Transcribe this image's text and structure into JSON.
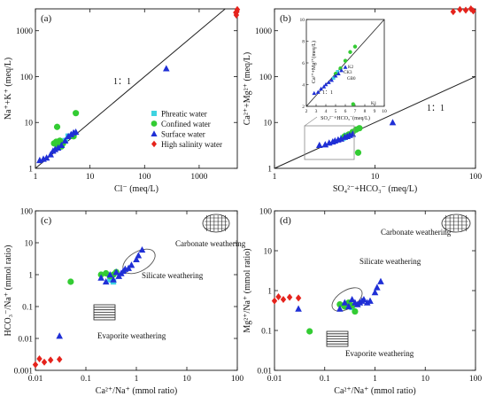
{
  "colors": {
    "phreatic": "#3fd3e0",
    "confined": "#33cc33",
    "surface": "#1f2fd6",
    "high_salinity": "#e5231c",
    "line": "#222222"
  },
  "chart_data": [
    {
      "panel": "(a)",
      "type": "scatter",
      "xscale": "log",
      "yscale": "log",
      "xlim": [
        1,
        5000
      ],
      "ylim": [
        1,
        3000
      ],
      "xticks": [
        "1",
        "10",
        "100",
        "1000"
      ],
      "yticks": [
        "1",
        "10",
        "100",
        "1000"
      ],
      "xlabel": "Cl⁻ (meq/L)",
      "ylabel": "Na⁺+K⁺ (meq/L)",
      "annotations": [
        "1：1"
      ],
      "legend": {
        "placement": "bottom-right",
        "entries": [
          "Phreatic water",
          "Confined water",
          "Surface water",
          "High salinity water"
        ]
      },
      "series": [
        {
          "name": "Phreatic water",
          "marker": "square",
          "x": [
            2.5,
            3.5,
            4.0
          ],
          "y": [
            3.0,
            4.0,
            5.0
          ]
        },
        {
          "name": "Confined water",
          "marker": "circle",
          "x": [
            2.2,
            2.5,
            2.8,
            3.0,
            3.2,
            2.4,
            5.5,
            5.0,
            2.6
          ],
          "y": [
            3.5,
            8.0,
            4.0,
            3.0,
            3.5,
            3.8,
            16,
            5.0,
            3.2
          ]
        },
        {
          "name": "Surface water",
          "marker": "triangle",
          "x": [
            1.2,
            1.4,
            1.6,
            1.9,
            2.1,
            2.3,
            2.6,
            3.0,
            3.5,
            4.0,
            4.5,
            5.0,
            5.5,
            250
          ],
          "y": [
            1.5,
            1.6,
            1.7,
            2.0,
            2.4,
            2.6,
            2.8,
            3.2,
            4.0,
            5.0,
            5.5,
            6.0,
            6.2,
            150
          ]
        },
        {
          "name": "High salinity water",
          "marker": "diamond",
          "x": [
            4800,
            4900,
            4700,
            5000
          ],
          "y": [
            2200,
            2600,
            2500,
            2900
          ]
        }
      ],
      "reference_line": {
        "slope": 1,
        "label": "1：1"
      }
    },
    {
      "panel": "(b)",
      "type": "scatter",
      "xscale": "log",
      "yscale": "log",
      "xlim": [
        1,
        100
      ],
      "ylim": [
        1,
        3000
      ],
      "xticks": [
        "1",
        "10",
        "100"
      ],
      "yticks": [
        "1",
        "10",
        "100",
        "1000"
      ],
      "xlabel": "SO₄²⁻+HCO₃⁻ (meq/L)",
      "ylabel": "Ca²⁺+Mg²⁺ (meq/L)",
      "annotations": [
        "1：1"
      ],
      "inset": {
        "xlabel": "SO₄²⁻+HCO₃⁻(meq/L)",
        "ylabel": "Ca²⁺+Mg²⁺(meq/L)",
        "xlim": [
          2,
          10
        ],
        "ylim": [
          2,
          10
        ],
        "xticks": [
          "2",
          "3",
          "4",
          "5",
          "6",
          "7",
          "8",
          "9",
          "10"
        ],
        "yticks": [
          "2",
          "4",
          "6",
          "8",
          "10"
        ],
        "annotations": [
          "1：1",
          "K2",
          "CK3",
          "GB0",
          "K1"
        ]
      },
      "series": [
        {
          "name": "Phreatic water",
          "marker": "square",
          "x": [
            4.8,
            5.2
          ],
          "y": [
            4.6,
            5.2
          ]
        },
        {
          "name": "Confined water",
          "marker": "circle",
          "x": [
            5.0,
            5.5,
            6.0,
            6.5,
            7.0,
            6.8
          ],
          "y": [
            5.0,
            5.5,
            6.2,
            7.0,
            7.5,
            2.2
          ]
        },
        {
          "name": "Surface water",
          "marker": "triangle",
          "x": [
            2.8,
            3.2,
            3.5,
            3.8,
            4.0,
            4.3,
            4.6,
            5.0,
            5.3,
            5.6,
            6.0,
            15
          ],
          "y": [
            3.2,
            3.3,
            3.6,
            3.8,
            4.0,
            4.2,
            4.4,
            4.8,
            5.0,
            5.3,
            5.6,
            10
          ]
        },
        {
          "name": "High salinity water",
          "marker": "diamond",
          "x": [
            60,
            70,
            80,
            90,
            95
          ],
          "y": [
            2600,
            2900,
            2800,
            3000,
            2700
          ]
        }
      ],
      "reference_line": {
        "slope": 1,
        "label": "1：1"
      }
    },
    {
      "panel": "(c)",
      "type": "scatter",
      "xscale": "log",
      "yscale": "log",
      "xlim": [
        0.01,
        100
      ],
      "ylim": [
        0.001,
        100
      ],
      "xticks": [
        "0.01",
        "0.1",
        "1",
        "10",
        "100"
      ],
      "yticks": [
        "0.001",
        "0.01",
        "0.1",
        "1",
        "10",
        "100"
      ],
      "xlabel": "Ca²⁺/Na⁺ (mmol ratio)",
      "ylabel": "HCO₃⁻/Na⁺ (mmol ratio)",
      "annotations": [
        "Carbonate weathering",
        "Silicate weathering",
        "Evaporite weathering"
      ],
      "series": [
        {
          "name": "Phreatic water",
          "marker": "square",
          "x": [
            0.3,
            0.35
          ],
          "y": [
            0.7,
            0.6
          ]
        },
        {
          "name": "Confined water",
          "marker": "circle",
          "x": [
            0.05,
            0.2,
            0.25,
            0.3,
            0.35,
            0.4
          ],
          "y": [
            0.6,
            1.0,
            1.1,
            0.9,
            1.0,
            1.2
          ]
        },
        {
          "name": "Surface water",
          "marker": "triangle",
          "x": [
            0.03,
            0.2,
            0.25,
            0.3,
            0.35,
            0.4,
            0.45,
            0.5,
            0.55,
            0.6,
            0.7,
            0.8,
            1.0,
            1.1,
            1.3
          ],
          "y": [
            0.012,
            0.8,
            0.6,
            1.0,
            0.7,
            1.2,
            0.9,
            1.1,
            1.3,
            1.5,
            1.6,
            2.0,
            3.0,
            4.0,
            6.0
          ]
        },
        {
          "name": "High salinity water",
          "marker": "diamond",
          "x": [
            0.01,
            0.012,
            0.015,
            0.02,
            0.03
          ],
          "y": [
            0.0015,
            0.0023,
            0.0018,
            0.0021,
            0.0022
          ]
        }
      ]
    },
    {
      "panel": "(d)",
      "type": "scatter",
      "xscale": "log",
      "yscale": "log",
      "xlim": [
        0.01,
        100
      ],
      "ylim": [
        0.01,
        100
      ],
      "xticks": [
        "0.01",
        "0.1",
        "1",
        "10",
        "100"
      ],
      "yticks": [
        "0.01",
        "0.1",
        "1",
        "10",
        "100"
      ],
      "xlabel": "Ca²⁺/Na⁺ (mmol ratio)",
      "ylabel": "Mg²⁺/Na⁺ (mmol ratio)",
      "annotations": [
        "Carbonate weathering",
        "Silicate weathering",
        "Evaporite weathering"
      ],
      "series": [
        {
          "name": "Phreatic water",
          "marker": "square",
          "x": [
            0.3,
            0.35
          ],
          "y": [
            0.45,
            0.38
          ]
        },
        {
          "name": "Confined water",
          "marker": "circle",
          "x": [
            0.05,
            0.2,
            0.25,
            0.3,
            0.35,
            0.4
          ],
          "y": [
            0.095,
            0.45,
            0.4,
            0.5,
            0.42,
            0.3
          ]
        },
        {
          "name": "Surface water",
          "marker": "triangle",
          "x": [
            0.03,
            0.2,
            0.25,
            0.3,
            0.35,
            0.4,
            0.45,
            0.5,
            0.55,
            0.6,
            0.7,
            0.8,
            1.0,
            1.1,
            1.3
          ],
          "y": [
            0.35,
            0.35,
            0.5,
            0.4,
            0.6,
            0.5,
            0.45,
            0.5,
            0.55,
            0.6,
            0.5,
            0.55,
            0.9,
            1.2,
            1.7
          ]
        },
        {
          "name": "High salinity water",
          "marker": "diamond",
          "x": [
            0.01,
            0.012,
            0.015,
            0.02,
            0.03
          ],
          "y": [
            0.55,
            0.7,
            0.6,
            0.68,
            0.65
          ]
        }
      ]
    }
  ]
}
